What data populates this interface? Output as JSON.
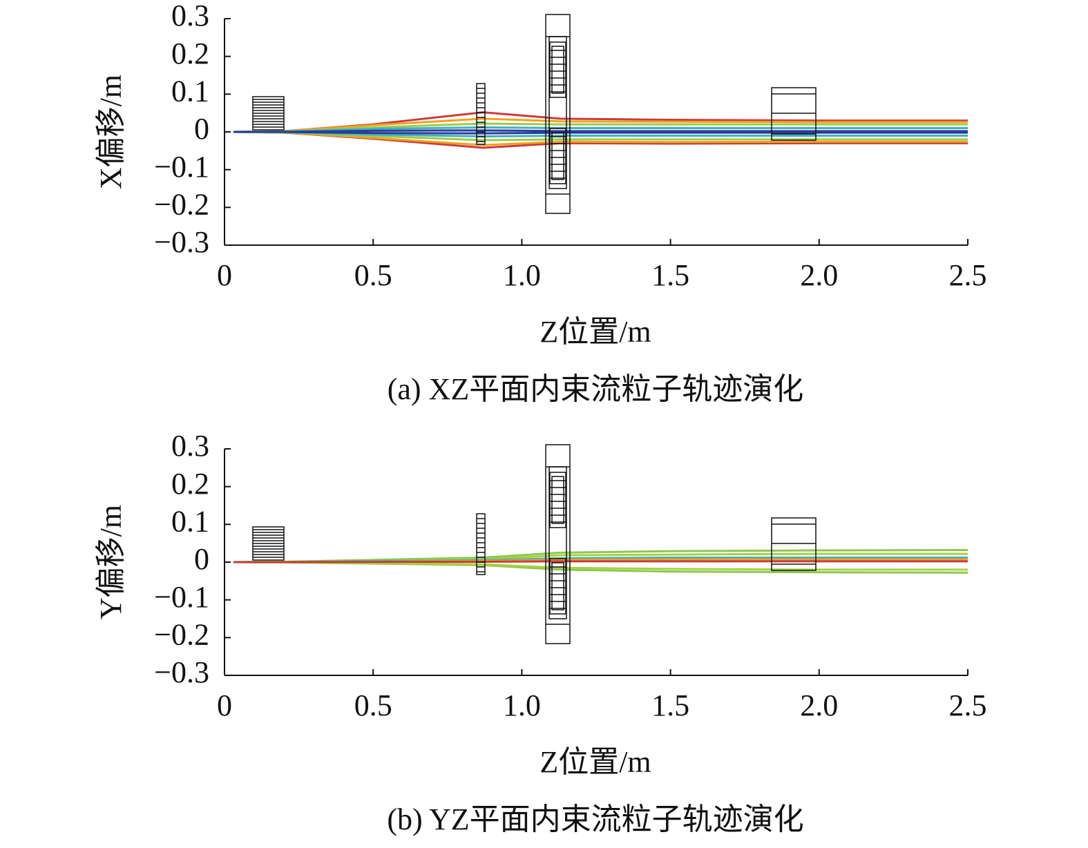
{
  "chart_data": [
    {
      "type": "line",
      "y_label": "X偏移/m",
      "x_label": "Z位置/m",
      "caption": "(a) XZ平面内束流粒子轨迹演化",
      "x": [
        0.03,
        0.2,
        0.5,
        0.87,
        1.13,
        1.5,
        2.0,
        2.5
      ],
      "series": [
        {
          "color": "#c83c3c",
          "values": [
            0,
            0.002,
            0.02,
            0.052,
            0.035,
            0.032,
            0.03,
            0.03
          ]
        },
        {
          "color": "#c83c3c",
          "values": [
            0,
            -0.002,
            -0.018,
            -0.042,
            -0.03,
            -0.031,
            -0.03,
            -0.03
          ]
        },
        {
          "color": "#f0a020",
          "values": [
            0,
            0.002,
            0.018,
            0.035,
            0.028,
            0.027,
            0.026,
            0.026
          ]
        },
        {
          "color": "#f0a020",
          "values": [
            0,
            -0.002,
            -0.016,
            -0.035,
            -0.026,
            -0.027,
            -0.026,
            -0.026
          ]
        },
        {
          "color": "#9ccc48",
          "values": [
            0,
            0.001,
            0.012,
            0.022,
            0.02,
            0.02,
            0.02,
            0.02
          ]
        },
        {
          "color": "#9ccc48",
          "values": [
            0,
            -0.001,
            -0.011,
            -0.022,
            -0.02,
            -0.02,
            -0.02,
            -0.02
          ]
        },
        {
          "color": "#40b0c0",
          "values": [
            0,
            0.001,
            0.008,
            0.012,
            0.01,
            0.01,
            0.01,
            0.01
          ]
        },
        {
          "color": "#40b0c0",
          "values": [
            0,
            -0.001,
            -0.007,
            -0.012,
            -0.01,
            -0.01,
            -0.01,
            -0.01
          ]
        },
        {
          "color": "#2a3c98",
          "values": [
            0,
            0,
            0.003,
            0.004,
            0.002,
            0.002,
            0.002,
            0.002
          ]
        },
        {
          "color": "#2a3c98",
          "values": [
            0,
            0,
            -0.003,
            -0.004,
            -0.002,
            -0.002,
            -0.002,
            -0.002
          ]
        }
      ],
      "xlim": [
        0,
        2.5
      ],
      "ylim": [
        -0.3,
        0.3
      ],
      "xticks": [
        0,
        0.5,
        {
          "value": 1,
          "label": "1.0"
        },
        1.5,
        {
          "value": 2,
          "label": "2.0"
        },
        2.5
      ],
      "yticks": [
        0.3,
        0.2,
        0.1,
        0,
        {
          "value": -0.1,
          "label": "−0.1"
        },
        {
          "value": -0.2,
          "label": "−0.2"
        },
        {
          "value": -0.3,
          "label": "−0.3"
        }
      ]
    },
    {
      "type": "line",
      "y_label": "Y偏移/m",
      "x_label": "Z位置/m",
      "caption": "(b) YZ平面内束流粒子轨迹演化",
      "x": [
        0.03,
        0.2,
        0.5,
        0.87,
        1.13,
        1.5,
        2.0,
        2.5
      ],
      "series": [
        {
          "color": "#8cc850",
          "values": [
            0,
            0.001,
            0.006,
            0.012,
            0.025,
            0.029,
            0.031,
            0.032
          ]
        },
        {
          "color": "#8cc850",
          "values": [
            0,
            -0.001,
            -0.004,
            -0.008,
            -0.02,
            -0.025,
            -0.027,
            -0.028
          ]
        },
        {
          "color": "#a8d040",
          "values": [
            0,
            0.001,
            0.004,
            0.008,
            0.018,
            0.02,
            0.022,
            0.022
          ]
        },
        {
          "color": "#a8d040",
          "values": [
            0,
            -0.001,
            -0.003,
            -0.006,
            -0.015,
            -0.018,
            -0.02,
            -0.02
          ]
        },
        {
          "color": "#40b0c0",
          "values": [
            0,
            0,
            0.003,
            0.005,
            0.01,
            0.012,
            0.012,
            0.012
          ]
        },
        {
          "color": "#2a3c98",
          "values": [
            0,
            0,
            0.001,
            0.002,
            0.004,
            0.005,
            0.005,
            0.005
          ]
        },
        {
          "color": "#f0a020",
          "values": [
            0,
            0,
            0.001,
            0.003,
            0.006,
            0.007,
            0.007,
            0.007
          ]
        },
        {
          "color": "#c83c3c",
          "values": [
            0,
            0,
            0.0005,
            0.001,
            0.002,
            0.002,
            0.002,
            0.002
          ]
        }
      ],
      "xlim": [
        0,
        2.5
      ],
      "ylim": [
        -0.3,
        0.3
      ],
      "xticks": [
        0,
        0.5,
        {
          "value": 1,
          "label": "1.0"
        },
        1.5,
        {
          "value": 2,
          "label": "2.0"
        },
        2.5
      ],
      "yticks": [
        0.3,
        0.2,
        0.1,
        0,
        {
          "value": -0.1,
          "label": "−0.1"
        },
        {
          "value": -0.2,
          "label": "−0.2"
        },
        {
          "value": -0.3,
          "label": "−0.3"
        }
      ]
    }
  ]
}
